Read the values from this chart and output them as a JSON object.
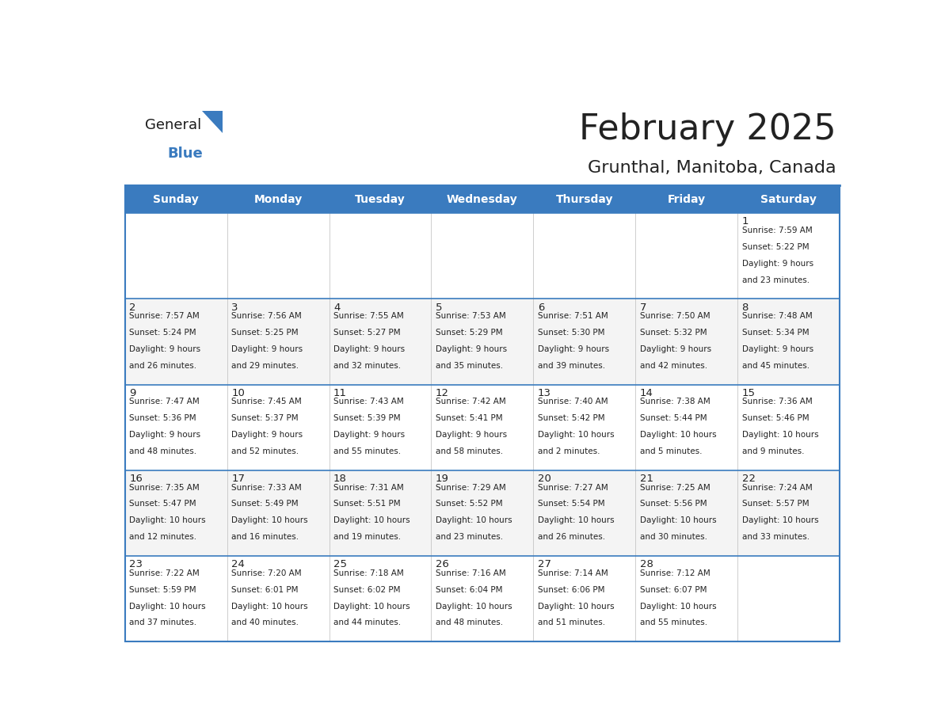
{
  "title": "February 2025",
  "subtitle": "Grunthal, Manitoba, Canada",
  "header_bg": "#3a7bbf",
  "header_text": "#ffffff",
  "border_color": "#3a7bbf",
  "text_color": "#222222",
  "day_number_color": "#222222",
  "days_of_week": [
    "Sunday",
    "Monday",
    "Tuesday",
    "Wednesday",
    "Thursday",
    "Friday",
    "Saturday"
  ],
  "calendar_data": [
    [
      null,
      null,
      null,
      null,
      null,
      null,
      {
        "day": 1,
        "sunrise": "7:59 AM",
        "sunset": "5:22 PM",
        "daylight": "9 hours and 23 minutes."
      }
    ],
    [
      {
        "day": 2,
        "sunrise": "7:57 AM",
        "sunset": "5:24 PM",
        "daylight": "9 hours and 26 minutes."
      },
      {
        "day": 3,
        "sunrise": "7:56 AM",
        "sunset": "5:25 PM",
        "daylight": "9 hours and 29 minutes."
      },
      {
        "day": 4,
        "sunrise": "7:55 AM",
        "sunset": "5:27 PM",
        "daylight": "9 hours and 32 minutes."
      },
      {
        "day": 5,
        "sunrise": "7:53 AM",
        "sunset": "5:29 PM",
        "daylight": "9 hours and 35 minutes."
      },
      {
        "day": 6,
        "sunrise": "7:51 AM",
        "sunset": "5:30 PM",
        "daylight": "9 hours and 39 minutes."
      },
      {
        "day": 7,
        "sunrise": "7:50 AM",
        "sunset": "5:32 PM",
        "daylight": "9 hours and 42 minutes."
      },
      {
        "day": 8,
        "sunrise": "7:48 AM",
        "sunset": "5:34 PM",
        "daylight": "9 hours and 45 minutes."
      }
    ],
    [
      {
        "day": 9,
        "sunrise": "7:47 AM",
        "sunset": "5:36 PM",
        "daylight": "9 hours and 48 minutes."
      },
      {
        "day": 10,
        "sunrise": "7:45 AM",
        "sunset": "5:37 PM",
        "daylight": "9 hours and 52 minutes."
      },
      {
        "day": 11,
        "sunrise": "7:43 AM",
        "sunset": "5:39 PM",
        "daylight": "9 hours and 55 minutes."
      },
      {
        "day": 12,
        "sunrise": "7:42 AM",
        "sunset": "5:41 PM",
        "daylight": "9 hours and 58 minutes."
      },
      {
        "day": 13,
        "sunrise": "7:40 AM",
        "sunset": "5:42 PM",
        "daylight": "10 hours and 2 minutes."
      },
      {
        "day": 14,
        "sunrise": "7:38 AM",
        "sunset": "5:44 PM",
        "daylight": "10 hours and 5 minutes."
      },
      {
        "day": 15,
        "sunrise": "7:36 AM",
        "sunset": "5:46 PM",
        "daylight": "10 hours and 9 minutes."
      }
    ],
    [
      {
        "day": 16,
        "sunrise": "7:35 AM",
        "sunset": "5:47 PM",
        "daylight": "10 hours and 12 minutes."
      },
      {
        "day": 17,
        "sunrise": "7:33 AM",
        "sunset": "5:49 PM",
        "daylight": "10 hours and 16 minutes."
      },
      {
        "day": 18,
        "sunrise": "7:31 AM",
        "sunset": "5:51 PM",
        "daylight": "10 hours and 19 minutes."
      },
      {
        "day": 19,
        "sunrise": "7:29 AM",
        "sunset": "5:52 PM",
        "daylight": "10 hours and 23 minutes."
      },
      {
        "day": 20,
        "sunrise": "7:27 AM",
        "sunset": "5:54 PM",
        "daylight": "10 hours and 26 minutes."
      },
      {
        "day": 21,
        "sunrise": "7:25 AM",
        "sunset": "5:56 PM",
        "daylight": "10 hours and 30 minutes."
      },
      {
        "day": 22,
        "sunrise": "7:24 AM",
        "sunset": "5:57 PM",
        "daylight": "10 hours and 33 minutes."
      }
    ],
    [
      {
        "day": 23,
        "sunrise": "7:22 AM",
        "sunset": "5:59 PM",
        "daylight": "10 hours and 37 minutes."
      },
      {
        "day": 24,
        "sunrise": "7:20 AM",
        "sunset": "6:01 PM",
        "daylight": "10 hours and 40 minutes."
      },
      {
        "day": 25,
        "sunrise": "7:18 AM",
        "sunset": "6:02 PM",
        "daylight": "10 hours and 44 minutes."
      },
      {
        "day": 26,
        "sunrise": "7:16 AM",
        "sunset": "6:04 PM",
        "daylight": "10 hours and 48 minutes."
      },
      {
        "day": 27,
        "sunrise": "7:14 AM",
        "sunset": "6:06 PM",
        "daylight": "10 hours and 51 minutes."
      },
      {
        "day": 28,
        "sunrise": "7:12 AM",
        "sunset": "6:07 PM",
        "daylight": "10 hours and 55 minutes."
      },
      null
    ]
  ],
  "logo_general_color": "#1a1a1a",
  "logo_blue_color": "#3a7bbf",
  "cell_font_size": 7.5,
  "day_num_font_size": 9.5,
  "header_font_size": 10.0,
  "title_font_size": 32,
  "subtitle_font_size": 16
}
